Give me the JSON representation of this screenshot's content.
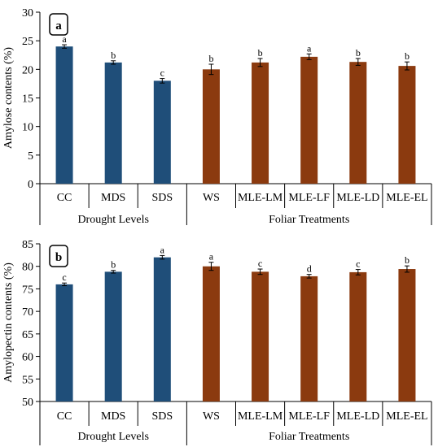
{
  "colors": {
    "drought": "#1f4e79",
    "foliar": "#8b3a0f"
  },
  "chart_data": [
    {
      "type": "bar",
      "panel_label": "a",
      "ylabel": "Amylose contents (%)",
      "ylim": [
        0,
        30
      ],
      "yticks": [
        0,
        5,
        10,
        15,
        20,
        25,
        30
      ],
      "categories": [
        "CC",
        "MDS",
        "SDS",
        "WS",
        "MLE-LM",
        "MLE-LF",
        "MLE-LD",
        "MLE-EL"
      ],
      "values": [
        24.0,
        21.2,
        18.0,
        20.0,
        21.2,
        22.2,
        21.3,
        20.6
      ],
      "errors": [
        0.3,
        0.3,
        0.4,
        0.9,
        0.7,
        0.5,
        0.6,
        0.7
      ],
      "letters": [
        "a",
        "b",
        "c",
        "b",
        "b",
        "a",
        "b",
        "b"
      ],
      "groups": [
        {
          "label": "Drought Levels",
          "from": 0,
          "to": 2
        },
        {
          "label": "Foliar Treatments",
          "from": 3,
          "to": 7
        }
      ]
    },
    {
      "type": "bar",
      "panel_label": "b",
      "ylabel": "Amylopectin contents (%)",
      "ylim": [
        50,
        85
      ],
      "yticks": [
        50,
        55,
        60,
        65,
        70,
        75,
        80,
        85
      ],
      "categories": [
        "CC",
        "MDS",
        "SDS",
        "WS",
        "MLE-LM",
        "MLE-LF",
        "MLE-LD",
        "MLE-EL"
      ],
      "values": [
        76.0,
        78.8,
        82.0,
        80.0,
        78.8,
        77.8,
        78.7,
        79.4
      ],
      "errors": [
        0.3,
        0.3,
        0.4,
        0.9,
        0.6,
        0.4,
        0.6,
        0.7
      ],
      "letters": [
        "c",
        "b",
        "a",
        "a",
        "c",
        "d",
        "c",
        "b"
      ],
      "groups": [
        {
          "label": "Drought Levels",
          "from": 0,
          "to": 2
        },
        {
          "label": "Foliar Treatments",
          "from": 3,
          "to": 7
        }
      ]
    }
  ]
}
